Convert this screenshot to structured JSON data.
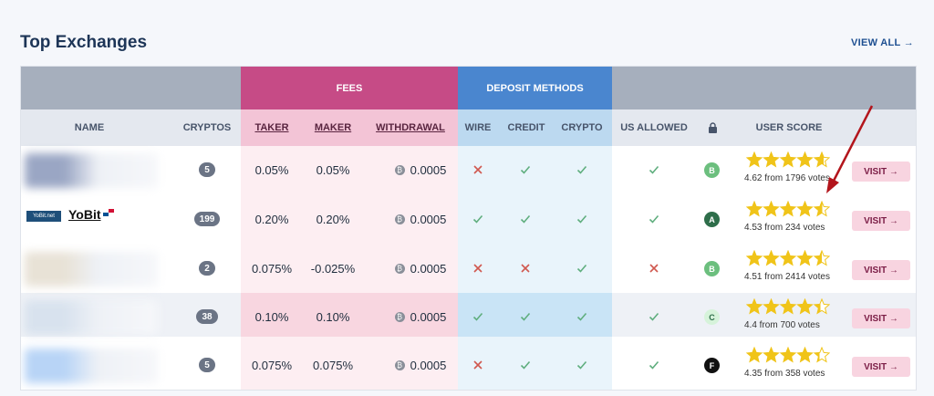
{
  "page": {
    "title": "Top Exchanges",
    "view_all": "VIEW ALL →"
  },
  "header": {
    "fees": "FEES",
    "deposit_methods": "DEPOSIT METHODS",
    "name": "NAME",
    "cryptos": "CRYPTOS",
    "taker": "TAKER",
    "maker": "MAKER",
    "withdrawal": "WITHDRAWAL",
    "wire": "WIRE",
    "credit": "CREDIT",
    "crypto": "CRYPTO",
    "us_allowed": "US ALLOWED",
    "user_score": "USER SCORE",
    "lock_icon": "lock-icon"
  },
  "rows": [
    {
      "name": "",
      "cryptos": "5",
      "taker": "0.05%",
      "maker": "0.05%",
      "withdrawal": "0.0005",
      "wire": "no",
      "credit": "yes",
      "crypto": "yes",
      "us_allowed": "yes",
      "grade": "B",
      "rating": 4.62,
      "votes": "4.62 from 1796 votes",
      "visit": "VISIT →",
      "blur_color": "#9aa6c4"
    },
    {
      "name": "YoBit",
      "logo": "YoBit.net",
      "cryptos": "199",
      "taker": "0.20%",
      "maker": "0.20%",
      "withdrawal": "0.0005",
      "wire": "yes",
      "credit": "yes",
      "crypto": "yes",
      "us_allowed": "yes",
      "grade": "A",
      "rating": 4.53,
      "votes": "4.53 from 234 votes",
      "visit": "VISIT →"
    },
    {
      "name": "",
      "cryptos": "2",
      "taker": "0.075%",
      "maker": "-0.025%",
      "withdrawal": "0.0005",
      "wire": "no",
      "credit": "no",
      "crypto": "yes",
      "us_allowed": "no",
      "grade": "B",
      "rating": 4.51,
      "votes": "4.51 from 2414 votes",
      "visit": "VISIT →",
      "blur_color": "#e8e2d6"
    },
    {
      "name": "",
      "cryptos": "38",
      "taker": "0.10%",
      "maker": "0.10%",
      "withdrawal": "0.0005",
      "wire": "yes",
      "credit": "yes",
      "crypto": "yes",
      "us_allowed": "yes",
      "grade": "C",
      "rating": 4.4,
      "votes": "4.4 from 700 votes",
      "visit": "VISIT →",
      "blur_color": "#d8e2ee"
    },
    {
      "name": "",
      "cryptos": "5",
      "taker": "0.075%",
      "maker": "0.075%",
      "withdrawal": "0.0005",
      "wire": "no",
      "credit": "yes",
      "crypto": "yes",
      "us_allowed": "yes",
      "grade": "F",
      "rating": 4.35,
      "votes": "4.35 from 358 votes",
      "visit": "VISIT →",
      "blur_color": "#b8d4f6"
    }
  ],
  "colors": {
    "check": "#5fae7e",
    "cross": "#d0584f",
    "star": "#f0c419",
    "grade_A": "#2e6e4a",
    "grade_B": "#6cbf7e",
    "grade_C": "#d6f3da",
    "grade_F": "#111111",
    "arrow": "#b3151c"
  },
  "icons": {
    "withdrawal_coin": "bitcoin-icon",
    "check": "check-icon",
    "cross": "cross-icon",
    "star": "star-icon",
    "annotation": "red-arrow-icon"
  }
}
